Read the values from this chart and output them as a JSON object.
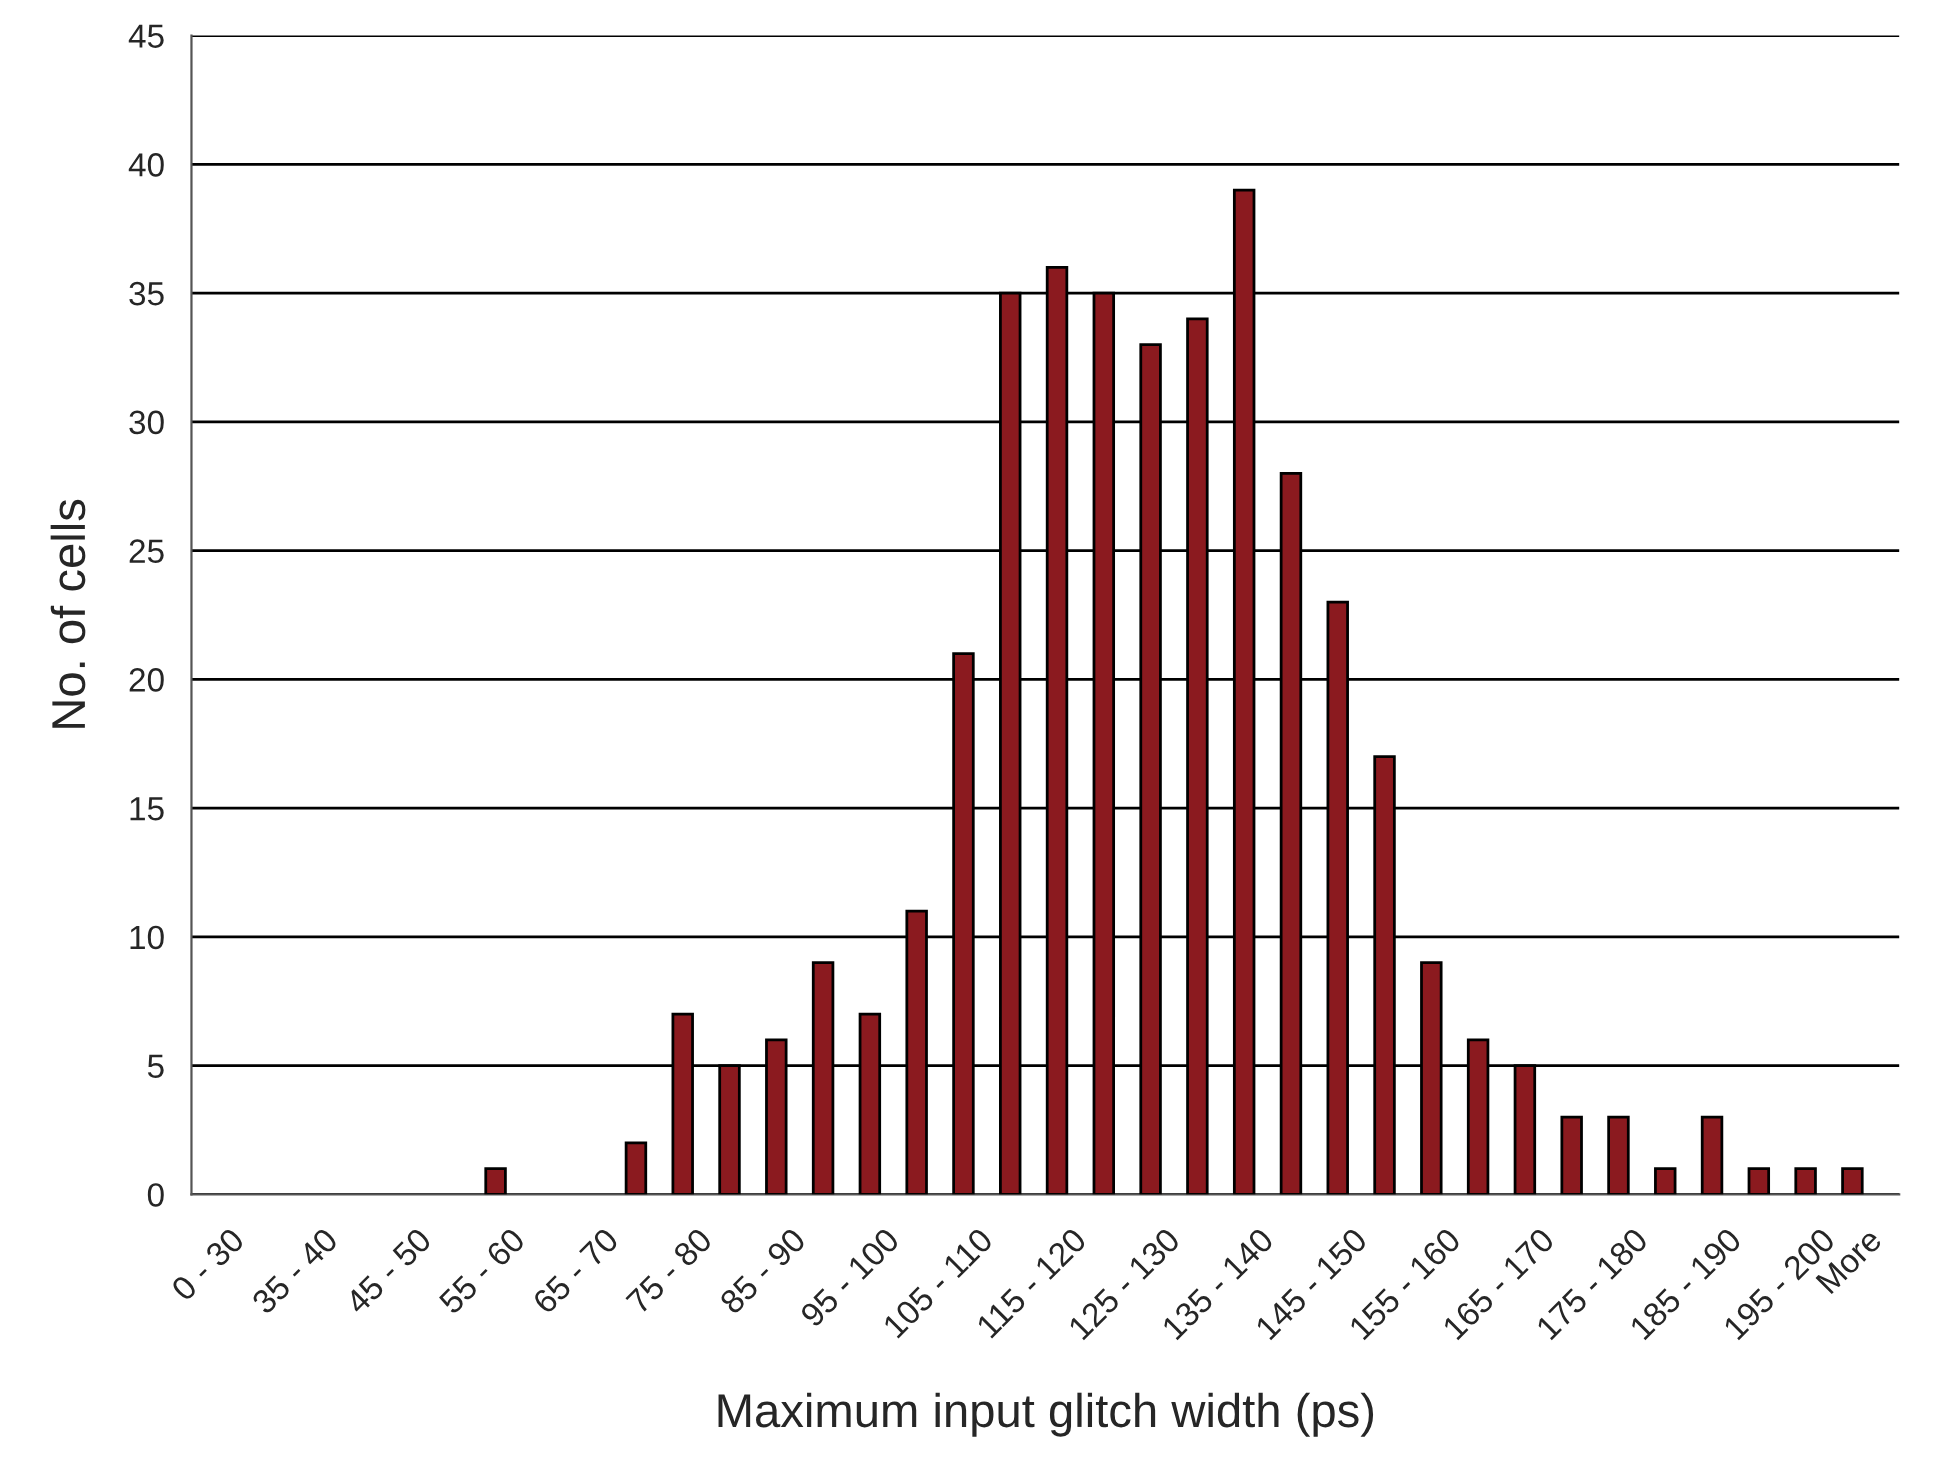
{
  "chart_data": {
    "type": "bar",
    "xlabel": "Maximum input glitch width (ps)",
    "ylabel": "No. of cells",
    "categories": [
      "0 - 30",
      null,
      "35 - 40",
      null,
      "45 - 50",
      null,
      "55 - 60",
      null,
      "65 - 70",
      null,
      "75 - 80",
      null,
      "85 - 90",
      null,
      "95 - 100",
      null,
      "105 - 110",
      null,
      "115 - 120",
      null,
      "125 - 130",
      null,
      "135 - 140",
      null,
      "145 - 150",
      null,
      "155 - 160",
      null,
      "165 - 170",
      null,
      "175 - 180",
      null,
      "185 - 190",
      null,
      "195 - 200",
      "More"
    ],
    "values": [
      0,
      0,
      0,
      0,
      0,
      0,
      1,
      0,
      0,
      2,
      7,
      5,
      6,
      9,
      7,
      11,
      21,
      35,
      36,
      35,
      33,
      34,
      39,
      28,
      23,
      17,
      9,
      6,
      5,
      3,
      3,
      1,
      3,
      1,
      1,
      1
    ],
    "color": "#8b1a1f",
    "ylim": [
      0,
      45
    ],
    "yticks": [
      0,
      5,
      10,
      15,
      20,
      25,
      30,
      35,
      40,
      45
    ],
    "grid": "y",
    "legend": false
  }
}
